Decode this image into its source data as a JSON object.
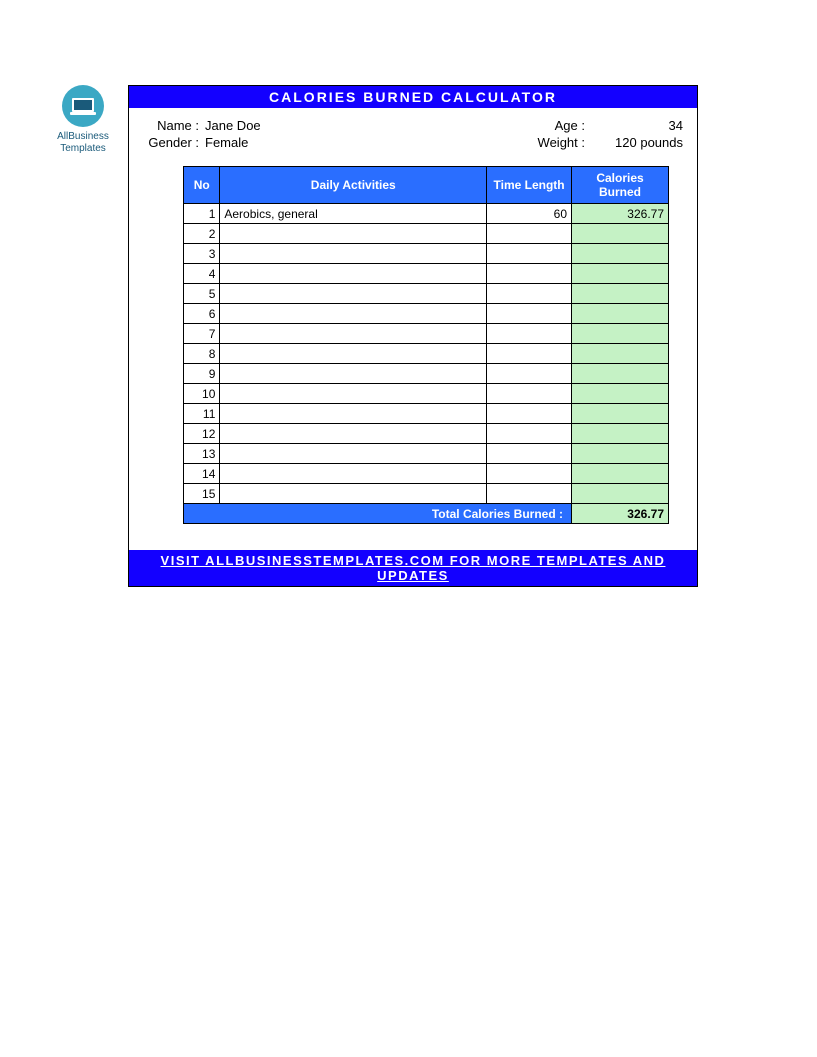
{
  "logo": {
    "line1": "AllBusiness",
    "line2": "Templates"
  },
  "title": "CALORIES BURNED CALCULATOR",
  "info": {
    "name_label": "Name :",
    "name_value": "Jane Doe",
    "gender_label": "Gender :",
    "gender_value": "Female",
    "age_label": "Age :",
    "age_value": "34",
    "weight_label": "Weight :",
    "weight_value": "120 pounds"
  },
  "table": {
    "headers": {
      "no": "No",
      "activities": "Daily Activities",
      "time": "Time Length",
      "calories": "Calories Burned"
    },
    "rows": [
      {
        "no": "1",
        "activity": "Aerobics, general",
        "time": "60",
        "calories": "326.77"
      },
      {
        "no": "2",
        "activity": "",
        "time": "",
        "calories": ""
      },
      {
        "no": "3",
        "activity": "",
        "time": "",
        "calories": ""
      },
      {
        "no": "4",
        "activity": "",
        "time": "",
        "calories": ""
      },
      {
        "no": "5",
        "activity": "",
        "time": "",
        "calories": ""
      },
      {
        "no": "6",
        "activity": "",
        "time": "",
        "calories": ""
      },
      {
        "no": "7",
        "activity": "",
        "time": "",
        "calories": ""
      },
      {
        "no": "8",
        "activity": "",
        "time": "",
        "calories": ""
      },
      {
        "no": "9",
        "activity": "",
        "time": "",
        "calories": ""
      },
      {
        "no": "10",
        "activity": "",
        "time": "",
        "calories": ""
      },
      {
        "no": "11",
        "activity": "",
        "time": "",
        "calories": ""
      },
      {
        "no": "12",
        "activity": "",
        "time": "",
        "calories": ""
      },
      {
        "no": "13",
        "activity": "",
        "time": "",
        "calories": ""
      },
      {
        "no": "14",
        "activity": "",
        "time": "",
        "calories": ""
      },
      {
        "no": "15",
        "activity": "",
        "time": "",
        "calories": ""
      }
    ],
    "total_label": "Total Calories Burned :",
    "total_value": "326.77"
  },
  "footer": "VISIT ALLBUSINESSTEMPLATES.COM FOR MORE TEMPLATES AND UPDATES",
  "colors": {
    "primary_blue": "#1300ff",
    "header_blue": "#2a6eff",
    "calories_bg": "#c5f2c5",
    "logo_bg": "#3ba8c4"
  }
}
